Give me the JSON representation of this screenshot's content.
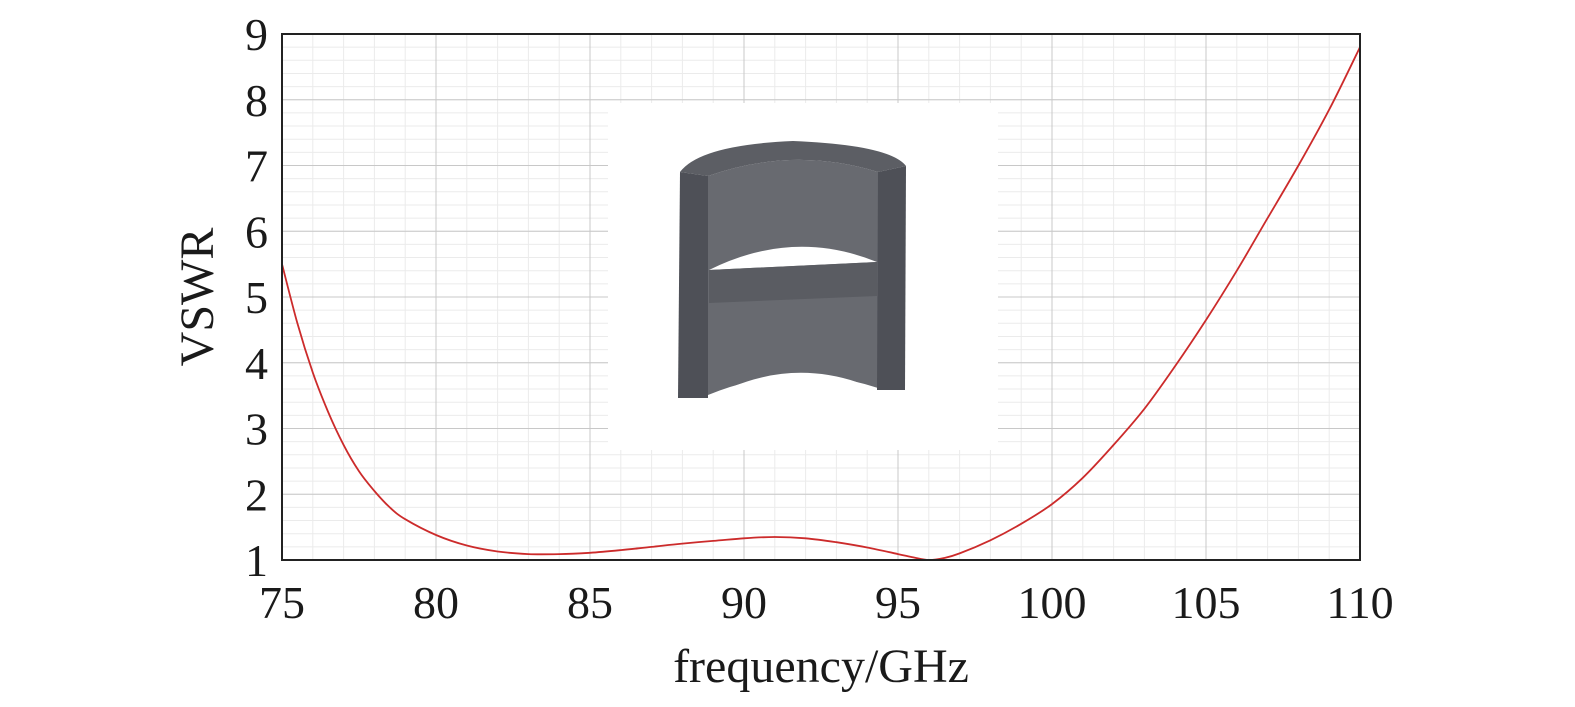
{
  "chart_data": {
    "type": "line",
    "title": "",
    "xlabel": "frequency/GHz",
    "ylabel": "VSWR",
    "xlim": [
      75,
      110
    ],
    "ylim": [
      1,
      9
    ],
    "x_ticks": [
      75,
      80,
      85,
      90,
      95,
      100,
      105,
      110
    ],
    "y_ticks": [
      1,
      2,
      3,
      4,
      5,
      6,
      7,
      8,
      9
    ],
    "grid": true,
    "legend": "none",
    "series": [
      {
        "color": "#cc2b2b",
        "x": [
          75,
          75.5,
          76,
          76.5,
          77,
          77.5,
          78,
          78.5,
          79,
          80,
          81,
          82,
          83,
          84,
          85,
          86,
          87,
          88,
          89,
          90,
          91,
          92,
          93,
          94,
          95,
          95.5,
          96,
          96.5,
          97,
          98,
          99,
          100,
          101,
          102,
          103,
          104,
          105,
          106,
          107,
          108,
          109,
          110
        ],
        "y": [
          5.5,
          4.6,
          3.85,
          3.25,
          2.75,
          2.35,
          2.05,
          1.8,
          1.62,
          1.38,
          1.22,
          1.13,
          1.09,
          1.09,
          1.11,
          1.15,
          1.2,
          1.25,
          1.29,
          1.33,
          1.35,
          1.33,
          1.27,
          1.19,
          1.09,
          1.04,
          1.0,
          1.03,
          1.1,
          1.3,
          1.55,
          1.85,
          2.25,
          2.75,
          3.3,
          3.95,
          4.65,
          5.4,
          6.2,
          7.0,
          7.85,
          8.8
        ]
      }
    ]
  },
  "inset": {
    "icon": "cylinder-cutaway-icon",
    "colors": {
      "outer": "#4e5057",
      "inner": "#686a70",
      "shelf": "#5a5c62",
      "rim": "#5c5e64",
      "background": "#ffffff"
    }
  }
}
